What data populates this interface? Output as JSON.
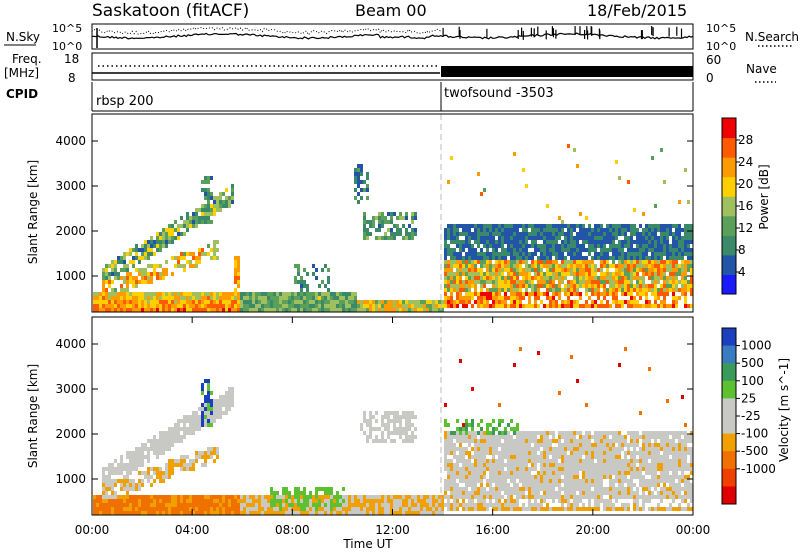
{
  "header": {
    "title": "Saskatoon (fitACF)",
    "beam": "Beam 00",
    "date": "18/Feb/2015"
  },
  "colors": {
    "power_scale": [
      "#1a1aff",
      "#2255a8",
      "#3a8a6a",
      "#5aa05a",
      "#a0c060",
      "#ffd000",
      "#ff9a00",
      "#ff5a00",
      "#f00000"
    ],
    "velocity_scale": [
      "#1a3fbf",
      "#3a7ac0",
      "#3a9a5a",
      "#5cc030",
      "#c8c8c4",
      "#c8c8c4",
      "#f0a000",
      "#f07000",
      "#f04000",
      "#e00000"
    ]
  },
  "chart_data": [
    {
      "type": "line",
      "name": "noise",
      "left_label": "N.Sky",
      "right_label": "N.Search",
      "left_ticks": [
        "10^5",
        "10^0"
      ],
      "right_ticks": [
        "10^5",
        "10^0"
      ]
    },
    {
      "type": "line",
      "name": "frequency",
      "left_label_top": "Freq.",
      "left_label_bottom": "[MHz]",
      "left_ticks": [
        "18",
        "8"
      ],
      "right_label": "Nave",
      "right_ticks": [
        "60",
        "0"
      ]
    },
    {
      "type": "bar",
      "name": "cpid",
      "label": "CPID",
      "segments": [
        {
          "label": "rbsp 200",
          "start_hour": 0,
          "end_hour": 14
        },
        {
          "label": "twofsound -3503",
          "start_hour": 14,
          "end_hour": 24
        }
      ]
    },
    {
      "type": "heatmap",
      "name": "power",
      "ylabel": "Slant Range [km]",
      "yticks": [
        "1000",
        "2000",
        "3000",
        "4000"
      ],
      "ylim": [
        200,
        4600
      ],
      "xlim": [
        0,
        24
      ],
      "colorbar_label": "Power [dB]",
      "colorbar_ticks": [
        "4",
        "8",
        "12",
        "16",
        "20",
        "24",
        "28"
      ],
      "colorbar_range": [
        0,
        32
      ]
    },
    {
      "type": "heatmap",
      "name": "velocity",
      "ylabel": "Slant Range [km]",
      "yticks": [
        "1000",
        "2000",
        "3000",
        "4000"
      ],
      "ylim": [
        200,
        4600
      ],
      "xlim": [
        0,
        24
      ],
      "xticks": [
        "00:00",
        "04:00",
        "08:00",
        "12:00",
        "16:00",
        "20:00",
        "00:00"
      ],
      "xlabel": "Time UT",
      "colorbar_label": "Velocity [m s^-1]",
      "colorbar_ticks": [
        "1000",
        "500",
        "100",
        "25",
        "-25",
        "-100",
        "-500",
        "-1000"
      ]
    }
  ]
}
